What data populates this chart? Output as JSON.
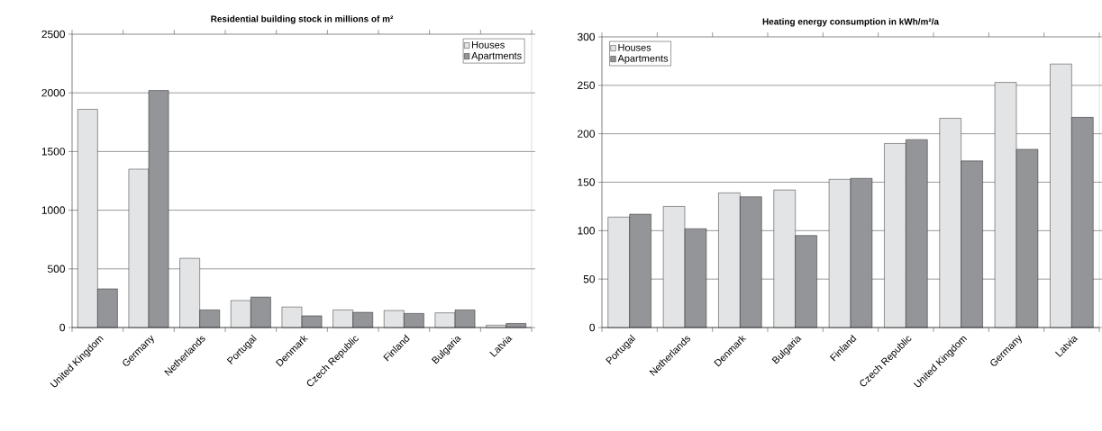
{
  "chart_data": [
    {
      "type": "bar",
      "title": "Residential building stock in millions of m²",
      "categories": [
        "United Kingdom",
        "Germany",
        "Netherlands",
        "Portugal",
        "Denmark",
        "Czech Republic",
        "Finland",
        "Bulgaria",
        "Latvia"
      ],
      "series": [
        {
          "name": "Houses",
          "color": "#e3e4e6",
          "values": [
            1860,
            1350,
            590,
            230,
            175,
            150,
            145,
            125,
            20
          ]
        },
        {
          "name": "Apartments",
          "color": "#939598",
          "values": [
            330,
            2020,
            150,
            260,
            100,
            130,
            120,
            150,
            35
          ]
        }
      ],
      "ylim": [
        0,
        2500
      ],
      "yticks": [
        0,
        500,
        1000,
        1500,
        2000,
        2500
      ],
      "grid": "y",
      "legend": "top right"
    },
    {
      "type": "bar",
      "title": "Heating energy consumption in kWh/m²/a",
      "categories": [
        "Portugal",
        "Netherlands",
        "Denmark",
        "Bulgaria",
        "Finland",
        "Czech Republic",
        "United Kingdom",
        "Germany",
        "Latvia"
      ],
      "series": [
        {
          "name": "Houses",
          "color": "#e3e4e6",
          "values": [
            114,
            125,
            139,
            142,
            153,
            190,
            216,
            253,
            272
          ]
        },
        {
          "name": "Apartments",
          "color": "#939598",
          "values": [
            117,
            102,
            135,
            95,
            154,
            194,
            172,
            184,
            217
          ]
        }
      ],
      "ylim": [
        0,
        300
      ],
      "yticks": [
        0,
        50,
        100,
        150,
        200,
        250,
        300
      ],
      "grid": "y",
      "legend": "top left"
    }
  ]
}
